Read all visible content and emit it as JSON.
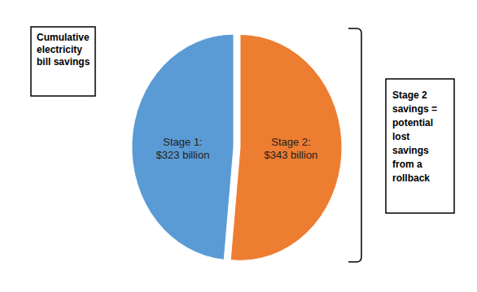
{
  "chart_data": {
    "type": "pie",
    "title": "Cumulative electricity bill savings",
    "categories": [
      "Stage 1:",
      "Stage 2:"
    ],
    "values": [
      323,
      343
    ],
    "value_labels": [
      "$323 billion",
      "$343 billion"
    ],
    "colors": [
      "#5b9bd5",
      "#ed7d31"
    ],
    "data_labels": true,
    "annotations": [
      "Stage 2 savings = potential lost savings from a rollback"
    ]
  }
}
